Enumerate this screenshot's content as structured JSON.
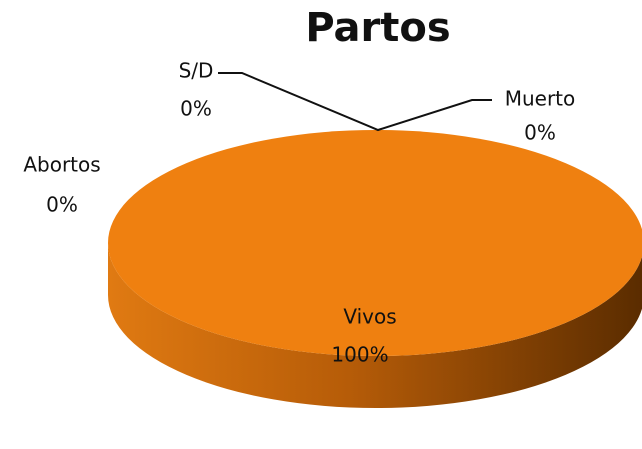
{
  "chart_data": {
    "type": "pie",
    "title": "Partos",
    "categories": [
      "Vivos",
      "Abortos",
      "S/D",
      "Muerto"
    ],
    "values": [
      100,
      0,
      0,
      0
    ],
    "value_labels": [
      "100%",
      "0%",
      "0%",
      "0%"
    ],
    "color": "#ef8010"
  }
}
